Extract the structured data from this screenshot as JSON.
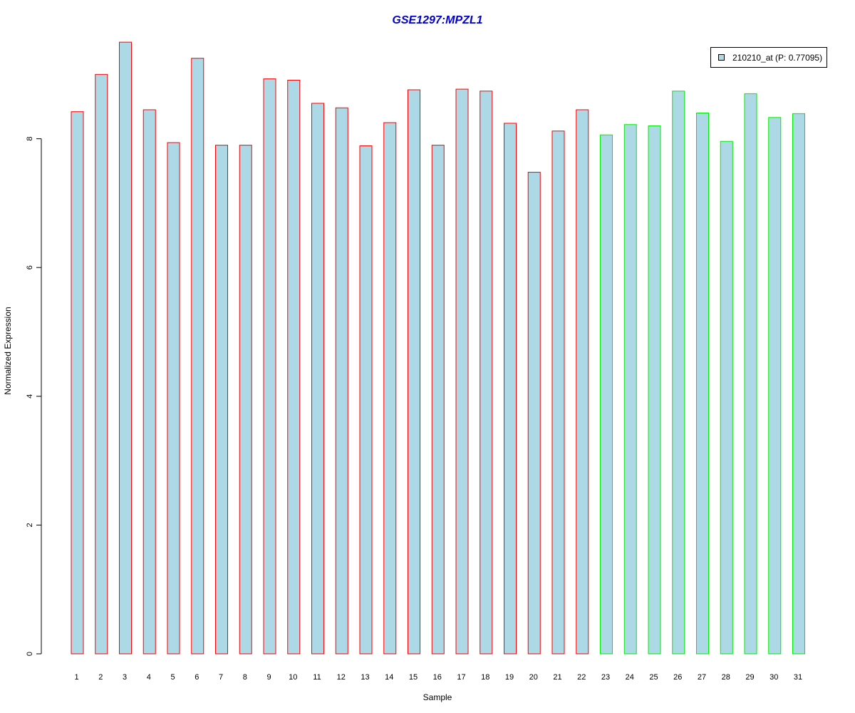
{
  "chart_data": {
    "type": "bar",
    "title": "GSE1297:MPZL1",
    "xlabel": "Sample",
    "ylabel": "Normalized Expression",
    "ylim": [
      0,
      9.6
    ],
    "yticks": [
      "0",
      "2",
      "4",
      "6",
      "8"
    ],
    "categories": [
      "1",
      "2",
      "3",
      "4",
      "5",
      "6",
      "7",
      "8",
      "9",
      "10",
      "11",
      "12",
      "13",
      "14",
      "15",
      "16",
      "17",
      "18",
      "19",
      "20",
      "21",
      "22",
      "23",
      "24",
      "25",
      "26",
      "27",
      "28",
      "29",
      "30",
      "31"
    ],
    "series": [
      {
        "name": "210210_at (P: 0.77095)",
        "values": [
          8.42,
          9.0,
          9.5,
          8.45,
          7.94,
          9.25,
          7.9,
          7.9,
          8.93,
          8.91,
          8.55,
          8.48,
          7.89,
          8.25,
          8.76,
          7.9,
          8.77,
          8.74,
          8.24,
          7.48,
          8.12,
          8.45,
          8.06,
          8.22,
          8.2,
          8.74,
          8.4,
          7.96,
          8.7,
          8.33,
          8.39
        ]
      }
    ],
    "groups": [
      {
        "from": 1,
        "to": 22,
        "border_color": "#ff0000"
      },
      {
        "from": 23,
        "to": 31,
        "border_color": "#00ee00"
      }
    ],
    "bar_fill": "#add8e6",
    "grid": false,
    "legend_position": "top-right"
  },
  "colors": {
    "title": "#0000cc",
    "bar_fill": "#add8e6",
    "group1_border": "#ff0000",
    "group2_border": "#00ee00"
  }
}
